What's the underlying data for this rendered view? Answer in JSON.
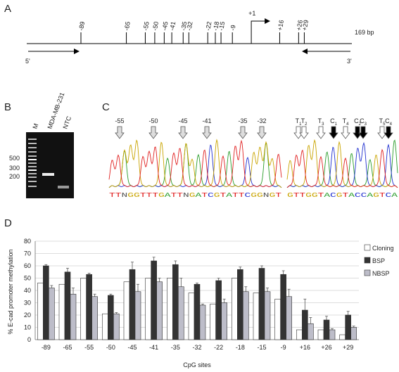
{
  "panel_a": {
    "letter": "A",
    "sites": [
      "-89",
      "-65",
      "-55",
      "-50",
      "-45",
      "-41",
      "-35",
      "-32",
      "-22",
      "-18",
      "-15",
      "-9",
      "+16",
      "+26",
      "+29"
    ],
    "tss": "+1",
    "length": "169 bp",
    "five_prime": "5'",
    "three_prime": "3'"
  },
  "panel_b": {
    "letter": "B",
    "lanes": [
      "M",
      "MDA-MB-231",
      "NTC"
    ],
    "sizes": [
      "500",
      "300",
      "200"
    ]
  },
  "panel_c": {
    "letter": "C",
    "left_markers": [
      "-55",
      "-50",
      "-45",
      "-41",
      "-35",
      "-32"
    ],
    "right_markers": [
      {
        "base": "T",
        "sub": "1"
      },
      {
        "base": "T",
        "sub": "2"
      },
      {
        "base": "T",
        "sub": "3"
      },
      {
        "base": "C",
        "sub": "1"
      },
      {
        "base": "T",
        "sub": "4"
      },
      {
        "base": "C",
        "sub": "2"
      },
      {
        "base": "C",
        "sub": "3"
      },
      {
        "base": "T",
        "sub": "5"
      },
      {
        "base": "C",
        "sub": "4"
      }
    ],
    "left_sequence": "TTNGGTTTGATTNGATCGTATTCGGNGT",
    "right_sequence": "GTTGGTACGTACCAGTCA"
  },
  "chart_data": {
    "type": "bar",
    "letter": "D",
    "x_label": "CpG sites",
    "y_label": "% E-cad promoter methylation",
    "categories": [
      "-89",
      "-65",
      "-55",
      "-50",
      "-45",
      "-41",
      "-35",
      "-32",
      "-22",
      "-18",
      "-15",
      "-9",
      "+16",
      "+26",
      "+29"
    ],
    "series": [
      {
        "name": "Cloning",
        "color": "#ffffff",
        "values": [
          46,
          45,
          50,
          21,
          47,
          50,
          50,
          38,
          29,
          50,
          38,
          33,
          8,
          8,
          4
        ]
      },
      {
        "name": "BSP",
        "color": "#333333",
        "values": [
          60,
          55,
          53,
          36,
          57,
          64,
          61,
          45,
          48,
          57,
          58,
          53,
          24,
          16,
          20
        ],
        "errors": [
          1,
          3,
          1,
          1,
          6,
          3,
          3,
          1,
          2,
          2,
          2,
          3,
          9,
          3,
          3
        ]
      },
      {
        "name": "NBSP",
        "color": "#bdbdc9",
        "values": [
          42,
          37,
          35,
          21,
          39,
          47,
          43,
          28,
          30,
          39,
          39,
          35,
          13,
          8,
          10
        ],
        "errors": [
          2,
          5,
          2,
          1,
          6,
          3,
          7,
          1,
          3,
          4,
          3,
          6,
          5,
          1,
          1
        ]
      }
    ],
    "ylim": [
      0,
      80
    ],
    "yticks": [
      0,
      10,
      20,
      30,
      40,
      50,
      60,
      70,
      80
    ],
    "grid": true
  }
}
